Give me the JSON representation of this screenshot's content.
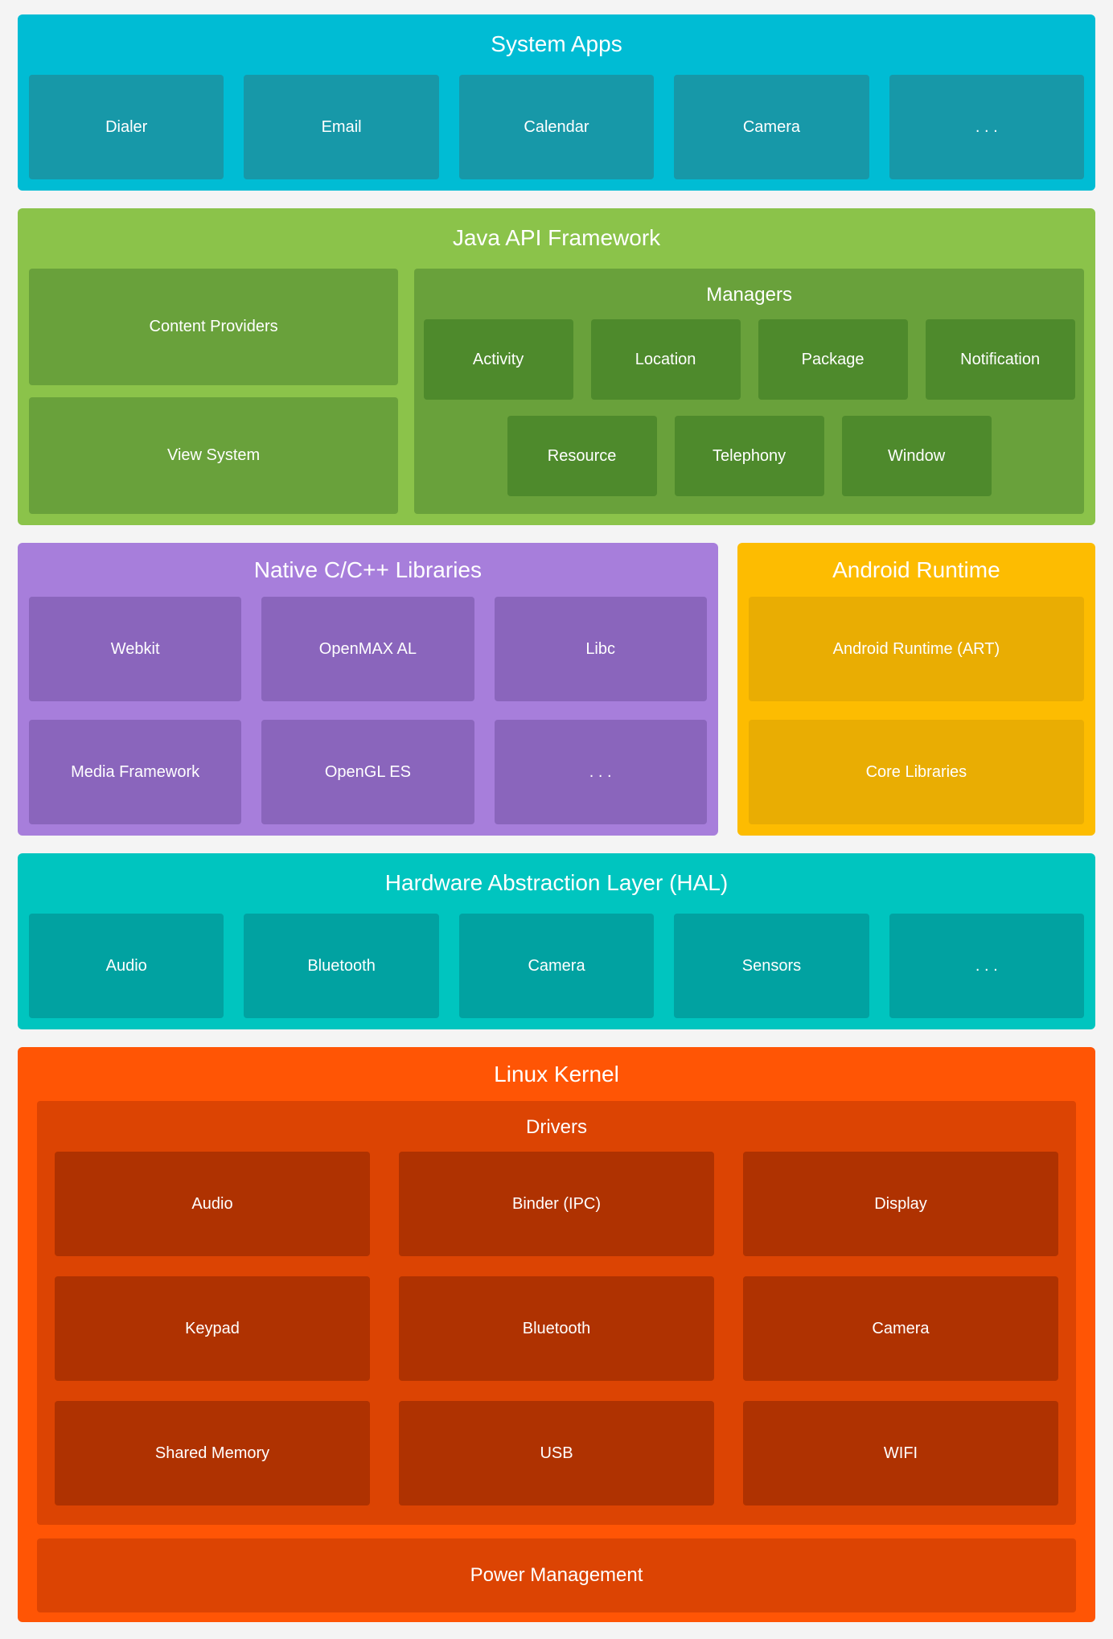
{
  "page": {
    "background": "#f4f4f4",
    "text_color": "#ffffff"
  },
  "layers": {
    "system_apps": {
      "title": "System Apps",
      "bg": "#00bcd4",
      "box_bg": "#1798a8",
      "items": [
        "Dialer",
        "Email",
        "Calendar",
        "Camera",
        ". . ."
      ]
    },
    "java_api": {
      "title": "Java API Framework",
      "bg": "#8bc34a",
      "box_bg": "#69a13b",
      "subbox_bg": "#4e8a2c",
      "left_items": [
        "Content Providers",
        "View System"
      ],
      "managers": {
        "title": "Managers",
        "row1": [
          "Activity",
          "Location",
          "Package",
          "Notification"
        ],
        "row2": [
          "Resource",
          "Telephony",
          "Window"
        ]
      }
    },
    "native_libs": {
      "title": "Native C/C++ Libraries",
      "bg": "#a77edb",
      "box_bg": "#8a65bc",
      "row1": [
        "Webkit",
        "OpenMAX AL",
        "Libc"
      ],
      "row2": [
        "Media Framework",
        "OpenGL ES",
        ". . ."
      ]
    },
    "android_runtime": {
      "title": "Android Runtime",
      "bg": "#fdbc01",
      "box_bg": "#e9ad03",
      "items": [
        "Android Runtime (ART)",
        "Core Libraries"
      ]
    },
    "hal": {
      "title": "Hardware Abstraction Layer (HAL)",
      "bg": "#00c5bf",
      "box_bg": "#01a2a1",
      "items": [
        "Audio",
        "Bluetooth",
        "Camera",
        "Sensors",
        ". . ."
      ]
    },
    "linux_kernel": {
      "title": "Linux Kernel",
      "bg": "#ff5505",
      "container_bg": "#dc4403",
      "box_bg": "#af3201",
      "drivers": {
        "title": "Drivers",
        "rows": [
          [
            "Audio",
            "Binder (IPC)",
            "Display"
          ],
          [
            "Keypad",
            "Bluetooth",
            "Camera"
          ],
          [
            "Shared Memory",
            "USB",
            "WIFI"
          ]
        ]
      },
      "power_label": "Power Management"
    }
  }
}
